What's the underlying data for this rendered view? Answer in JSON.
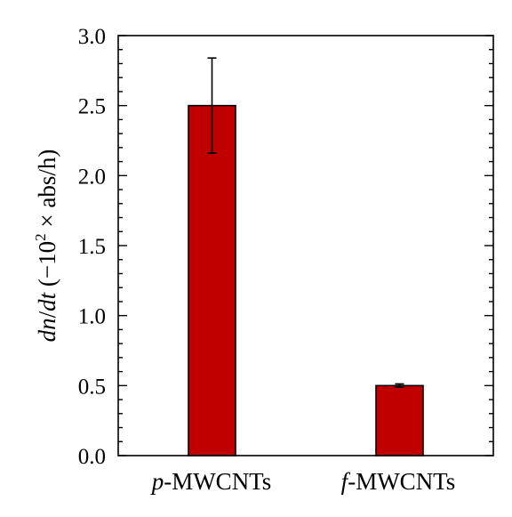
{
  "chart_data": {
    "type": "bar",
    "categories": [
      "MWCNTs",
      "MWCNTs"
    ],
    "category_prefixes": [
      "p",
      "f"
    ],
    "category_separator": "-",
    "values": [
      2.5,
      0.5
    ],
    "errors": [
      0.34,
      0.012
    ],
    "ylim": [
      0,
      3
    ],
    "yticks": [
      "0.0",
      "0.5",
      "1.0",
      "1.5",
      "2.0",
      "2.5",
      "3.0"
    ],
    "ylabel_parts": {
      "d1": "d",
      "n": "n",
      "slash": "/",
      "d2": "d",
      "t": "t",
      "open": " (−10",
      "exp": "2",
      "rest": " × abs/h)"
    },
    "bar_color": "#c00000",
    "grid": false
  }
}
